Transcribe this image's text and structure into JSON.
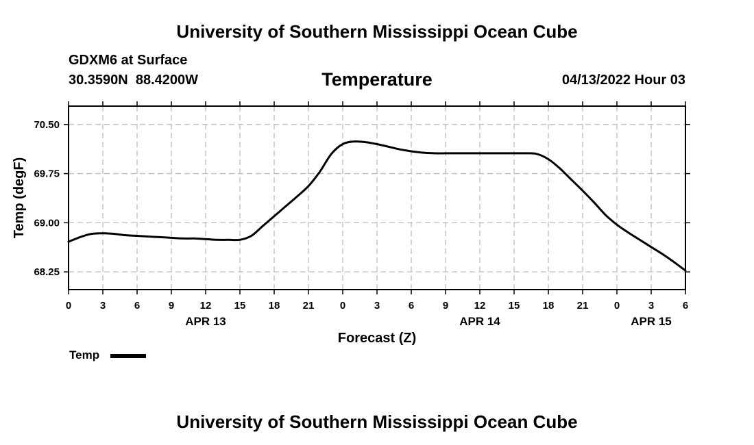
{
  "header": {
    "title": "University of Southern Mississippi Ocean Cube",
    "station": "GDXM6 at Surface",
    "lat": "30.3590N",
    "lon": "88.4200W",
    "variable": "Temperature",
    "datetime": "04/13/2022 Hour 03"
  },
  "footer": {
    "title": "University of Southern Mississippi Ocean Cube"
  },
  "legend": {
    "label": "Temp",
    "color": "#000000"
  },
  "chart_data": {
    "type": "line",
    "title": "Temperature",
    "xlabel": "Forecast (Z)",
    "ylabel": "Temp (degF)",
    "xlim": [
      0,
      54
    ],
    "ylim": [
      67.98,
      70.78
    ],
    "grid": true,
    "x_ticks": [
      0,
      3,
      6,
      9,
      12,
      15,
      18,
      21,
      24,
      27,
      30,
      33,
      36,
      39,
      42,
      45,
      48,
      51,
      54
    ],
    "x_tick_labels": [
      "0",
      "3",
      "6",
      "9",
      "12",
      "15",
      "18",
      "21",
      "0",
      "3",
      "6",
      "9",
      "12",
      "15",
      "18",
      "21",
      "0",
      "3",
      "6"
    ],
    "y_ticks": [
      68.25,
      69.0,
      69.75,
      70.5
    ],
    "y_tick_labels": [
      "68.25",
      "69.00",
      "69.75",
      "70.50"
    ],
    "date_labels": [
      {
        "x": 12,
        "label": "APR 13"
      },
      {
        "x": 36,
        "label": "APR 14"
      },
      {
        "x": 51,
        "label": "APR 15"
      }
    ],
    "series": [
      {
        "name": "Temp",
        "color": "#000000",
        "x": [
          0,
          1,
          2,
          3,
          4,
          5,
          6,
          7,
          8,
          9,
          10,
          11,
          12,
          13,
          14,
          15,
          16,
          17,
          18,
          19,
          20,
          21,
          22,
          23,
          24,
          25,
          26,
          27,
          28,
          29,
          30,
          31,
          32,
          33,
          34,
          35,
          36,
          37,
          38,
          39,
          40,
          41,
          42,
          43,
          44,
          45,
          46,
          47,
          48,
          49,
          50,
          51,
          52,
          53,
          54
        ],
        "values": [
          68.71,
          68.78,
          68.83,
          68.84,
          68.83,
          68.81,
          68.8,
          68.79,
          68.78,
          68.77,
          68.76,
          68.76,
          68.75,
          68.74,
          68.74,
          68.74,
          68.8,
          68.95,
          69.1,
          69.25,
          69.4,
          69.56,
          69.78,
          70.05,
          70.2,
          70.24,
          70.23,
          70.2,
          70.16,
          70.12,
          70.09,
          70.07,
          70.06,
          70.06,
          70.06,
          70.06,
          70.06,
          70.06,
          70.06,
          70.06,
          70.06,
          70.05,
          69.97,
          69.83,
          69.66,
          69.49,
          69.31,
          69.12,
          68.97,
          68.85,
          68.74,
          68.63,
          68.52,
          68.4,
          68.27
        ]
      }
    ]
  }
}
